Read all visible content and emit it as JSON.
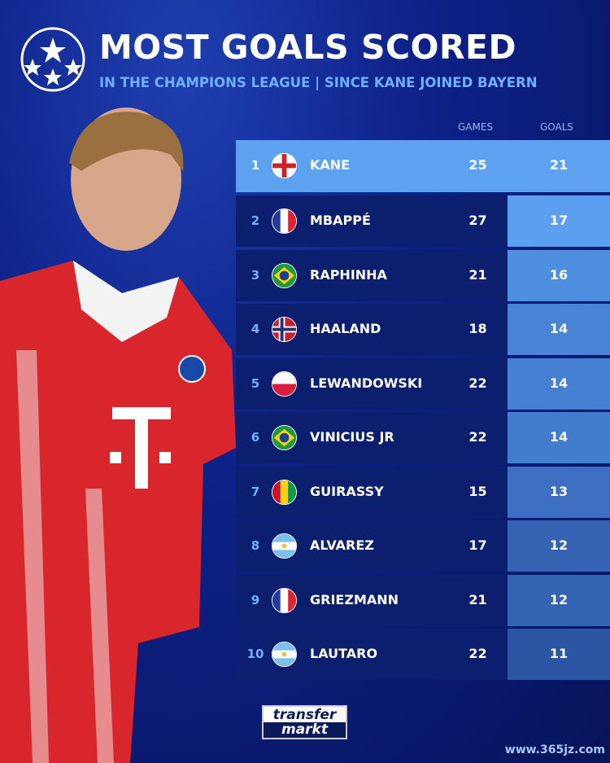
{
  "header": {
    "title": "MOST GOALS SCORED",
    "subtitle": "IN THE CHAMPIONS LEAGUE | SINCE KANE JOINED BAYERN"
  },
  "table": {
    "columns": [
      "GAMES",
      "GOALS"
    ],
    "rows": [
      {
        "rank": "1",
        "flag": "england",
        "name": "KANE",
        "games": "25",
        "goals": "21"
      },
      {
        "rank": "2",
        "flag": "france",
        "name": "MBAPPÉ",
        "games": "27",
        "goals": "17"
      },
      {
        "rank": "3",
        "flag": "brazil",
        "name": "RAPHINHA",
        "games": "21",
        "goals": "16"
      },
      {
        "rank": "4",
        "flag": "norway",
        "name": "HAALAND",
        "games": "18",
        "goals": "14"
      },
      {
        "rank": "5",
        "flag": "poland",
        "name": "LEWANDOWSKI",
        "games": "22",
        "goals": "14"
      },
      {
        "rank": "6",
        "flag": "brazil",
        "name": "VINICIUS JR",
        "games": "22",
        "goals": "14"
      },
      {
        "rank": "7",
        "flag": "guinea",
        "name": "GUIRASSY",
        "games": "15",
        "goals": "13"
      },
      {
        "rank": "8",
        "flag": "argentina",
        "name": "ALVAREZ",
        "games": "17",
        "goals": "12"
      },
      {
        "rank": "9",
        "flag": "france",
        "name": "GRIEZMANN",
        "games": "21",
        "goals": "12"
      },
      {
        "rank": "10",
        "flag": "argentina",
        "name": "LAUTARO",
        "games": "22",
        "goals": "11"
      }
    ]
  },
  "branding": {
    "logo_top": "transfer",
    "logo_bottom": "markt",
    "watermark": "www.365jz.com"
  },
  "colors": {
    "highlight": "#5da2f0",
    "row": "#0c1f6e",
    "accent": "#6fb0ff"
  }
}
